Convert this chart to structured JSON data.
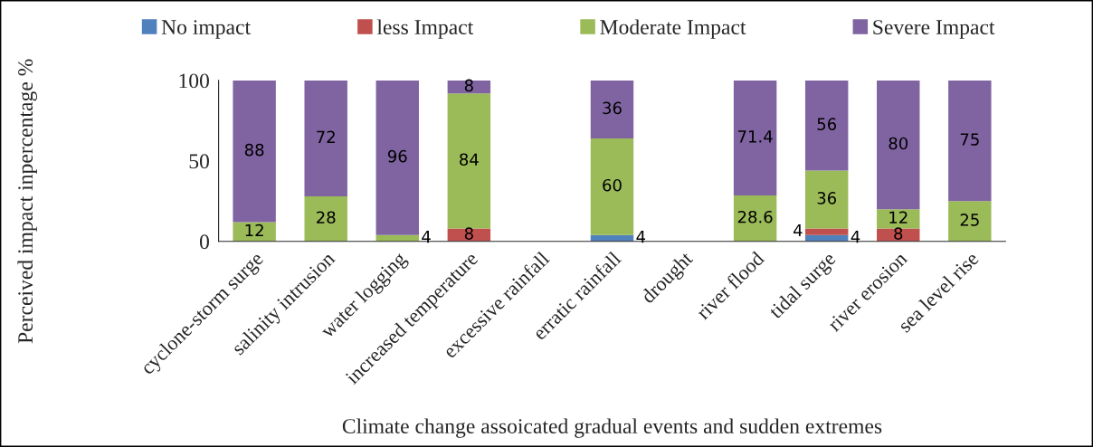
{
  "chart_data": {
    "type": "bar",
    "stacked": true,
    "xlabel": "Climate change assoicated gradual events and sudden extremes",
    "ylabel": "Perceived impact inpercentage %",
    "categories": [
      "cyclone-storm surge",
      "salinity intrusion",
      "water logging",
      "increased temperature",
      "excessive rainfall",
      "erratic rainfall",
      "drought",
      "river flood",
      "tidal surge",
      "river erosion",
      "sea level rise"
    ],
    "series": [
      {
        "name": "No impact",
        "color": "#4f81bd",
        "values": [
          null,
          null,
          null,
          null,
          null,
          4,
          null,
          null,
          4,
          null,
          null
        ]
      },
      {
        "name": "less Impact",
        "color": "#c0504d",
        "values": [
          null,
          null,
          null,
          8,
          null,
          null,
          null,
          null,
          4,
          8,
          null
        ]
      },
      {
        "name": "Moderate Impact",
        "color": "#9bbb59",
        "values": [
          12,
          28,
          4,
          84,
          null,
          60,
          null,
          28.6,
          36,
          12,
          25
        ]
      },
      {
        "name": "Severe Impact",
        "color": "#8064a2",
        "values": [
          88,
          72,
          96,
          8,
          null,
          36,
          null,
          71.4,
          56,
          80,
          75
        ]
      }
    ],
    "ylim": [
      0,
      100
    ],
    "yticks": [
      0,
      50,
      100
    ],
    "data_labels": true,
    "legend": "top",
    "grid": false
  }
}
